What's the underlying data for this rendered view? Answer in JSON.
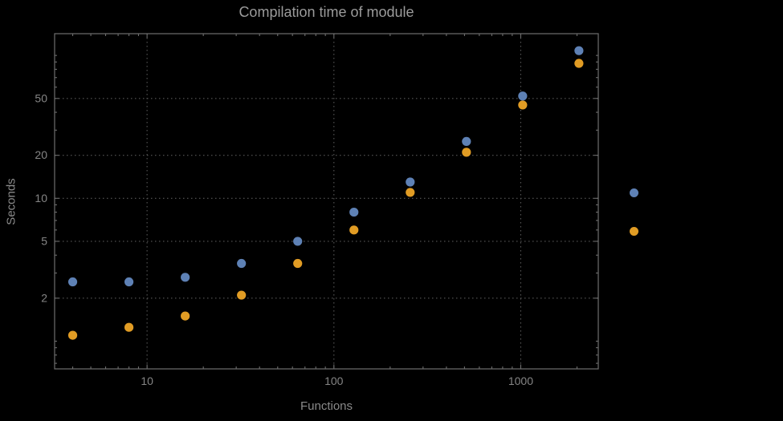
{
  "chart_data": {
    "type": "scatter",
    "title": "Compilation time of module",
    "xlabel": "Functions",
    "ylabel": "Seconds",
    "x_scale": "log",
    "y_scale": "log",
    "xlim": [
      3.2,
      2600
    ],
    "ylim": [
      0.64,
      142
    ],
    "x_ticks": [
      10,
      100,
      1000
    ],
    "y_ticks": [
      2,
      5,
      10,
      20,
      50
    ],
    "x_gridlines": [
      10,
      100,
      1000
    ],
    "y_gridlines": [
      2,
      5,
      10,
      20,
      50
    ],
    "grid": "dotted",
    "legend_position": "right-outside",
    "background": "#000000",
    "frame_color": "#6e6e6e",
    "grid_color": "#585858",
    "text_color": "#858585",
    "x": [
      4,
      8,
      16,
      32,
      64,
      128,
      256,
      512,
      1024,
      2048
    ],
    "series": [
      {
        "name": "blue",
        "color": "#5E81B5",
        "values": [
          2.6,
          2.6,
          2.8,
          3.5,
          5.0,
          8.0,
          13,
          25,
          52,
          108
        ]
      },
      {
        "name": "orange",
        "color": "#E19C24",
        "values": [
          1.1,
          1.25,
          1.5,
          2.1,
          3.5,
          6.0,
          11,
          21,
          45,
          88
        ]
      }
    ]
  }
}
